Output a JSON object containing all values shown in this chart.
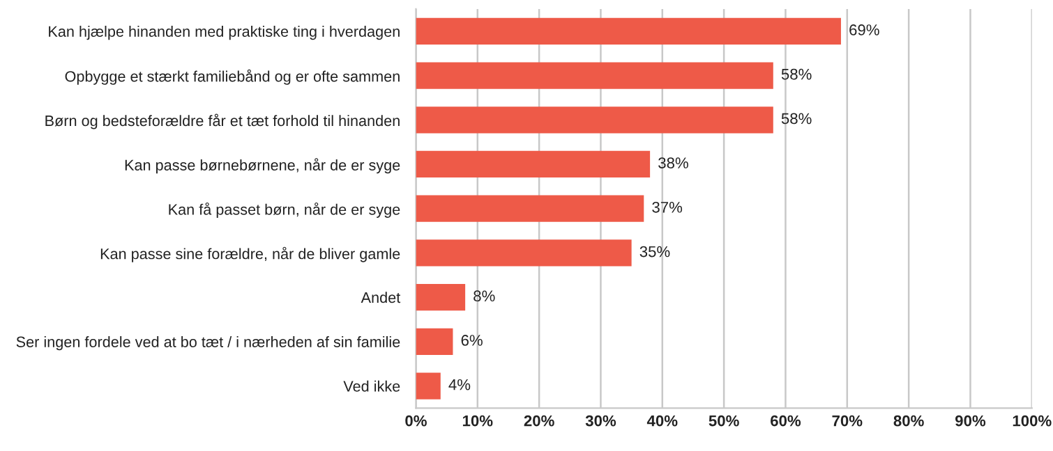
{
  "chart_data": {
    "type": "bar",
    "orientation": "horizontal",
    "categories": [
      "Kan hjælpe hinanden med praktiske ting i hverdagen",
      "Opbygge et stærkt familiebånd og er ofte sammen",
      "Børn og bedsteforældre får et tæt forhold til hinanden",
      "Kan passe børnebørnene, når de er syge",
      "Kan få passet børn, når de er syge",
      "Kan passe sine forældre, når de bliver gamle",
      "Andet",
      "Ser ingen fordele ved at bo tæt / i nærheden af sin familie",
      "Ved ikke"
    ],
    "values": [
      69,
      58,
      58,
      38,
      37,
      35,
      8,
      6,
      4
    ],
    "value_labels": [
      "69%",
      "58%",
      "58%",
      "38%",
      "37%",
      "35%",
      "8%",
      "6%",
      "4%"
    ],
    "color": "#ee5a48",
    "xlim": [
      0,
      100
    ],
    "xticks": [
      {
        "value": 0,
        "label": "0%"
      },
      {
        "value": 10,
        "label": "10%"
      },
      {
        "value": 20,
        "label": "20%"
      },
      {
        "value": 30,
        "label": "30%"
      },
      {
        "value": 40,
        "label": "40%"
      },
      {
        "value": 50,
        "label": "50%"
      },
      {
        "value": 60,
        "label": "60%"
      },
      {
        "value": 70,
        "label": "70%"
      },
      {
        "value": 80,
        "label": "80%"
      },
      {
        "value": 90,
        "label": "90%"
      },
      {
        "value": 100,
        "label": "100%"
      }
    ],
    "grid": "x",
    "legend": false
  }
}
